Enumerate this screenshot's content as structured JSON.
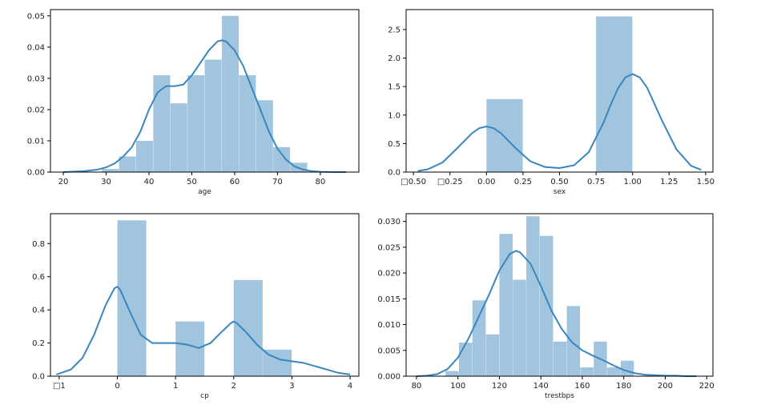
{
  "chart_data": [
    {
      "type": "histogram+kde",
      "xlabel": "age",
      "xlim": [
        17,
        89
      ],
      "ylim": [
        0,
        0.052
      ],
      "xticks": [
        20,
        30,
        40,
        50,
        60,
        70,
        80
      ],
      "xtick_labels": [
        "20",
        "30",
        "40",
        "50",
        "60",
        "70",
        "80"
      ],
      "yticks": [
        0,
        0.01,
        0.02,
        0.03,
        0.04,
        0.05
      ],
      "ytick_labels": [
        "0.00",
        "0.01",
        "0.02",
        "0.03",
        "0.04",
        "0.05"
      ],
      "bins": [
        29,
        33,
        37,
        41,
        45,
        49,
        53,
        57,
        61,
        65,
        69,
        73,
        77
      ],
      "values": [
        0.001,
        0.005,
        0.01,
        0.031,
        0.022,
        0.031,
        0.036,
        0.05,
        0.031,
        0.023,
        0.008,
        0.003
      ],
      "kde": {
        "x": [
          20,
          25,
          28,
          30,
          32,
          34,
          36,
          38,
          40,
          42,
          44,
          46,
          48,
          50,
          52,
          54,
          56,
          57,
          58,
          60,
          62,
          64,
          66,
          68,
          70,
          72,
          74,
          76,
          78,
          80,
          83,
          86
        ],
        "y": [
          0.0,
          0.0003,
          0.0008,
          0.0015,
          0.0028,
          0.005,
          0.008,
          0.013,
          0.02,
          0.0255,
          0.0275,
          0.0275,
          0.028,
          0.031,
          0.035,
          0.039,
          0.0418,
          0.0422,
          0.0418,
          0.039,
          0.034,
          0.027,
          0.02,
          0.013,
          0.0075,
          0.004,
          0.0018,
          0.0008,
          0.0003,
          0.0001,
          0.0,
          0.0
        ]
      }
    },
    {
      "type": "histogram+kde",
      "xlabel": "sex",
      "xlim": [
        -0.55,
        1.55
      ],
      "ylim": [
        0,
        2.85
      ],
      "xticks": [
        -0.5,
        -0.25,
        0.0,
        0.25,
        0.5,
        0.75,
        1.0,
        1.25,
        1.5
      ],
      "xtick_labels": [
        "□0.50",
        "□0.25",
        "0.00",
        "0.25",
        "0.50",
        "0.75",
        "1.00",
        "1.25",
        "1.50"
      ],
      "yticks": [
        0,
        0.5,
        1.0,
        1.5,
        2.0,
        2.5
      ],
      "ytick_labels": [
        "0.0",
        "0.5",
        "1.0",
        "1.5",
        "2.0",
        "2.5"
      ],
      "bins": [
        0.0,
        0.25,
        0.5,
        0.75,
        1.0
      ],
      "values": [
        1.28,
        0.0,
        0.0,
        2.73
      ],
      "kde": {
        "x": [
          -0.47,
          -0.4,
          -0.3,
          -0.2,
          -0.1,
          -0.05,
          0.0,
          0.05,
          0.1,
          0.2,
          0.3,
          0.4,
          0.5,
          0.6,
          0.7,
          0.8,
          0.85,
          0.9,
          0.95,
          1.0,
          1.05,
          1.1,
          1.2,
          1.3,
          1.4,
          1.47
        ],
        "y": [
          0.02,
          0.05,
          0.17,
          0.42,
          0.68,
          0.77,
          0.8,
          0.77,
          0.68,
          0.42,
          0.19,
          0.09,
          0.07,
          0.12,
          0.35,
          0.86,
          1.18,
          1.47,
          1.66,
          1.72,
          1.66,
          1.48,
          0.91,
          0.4,
          0.11,
          0.04
        ]
      }
    },
    {
      "type": "histogram+kde",
      "xlabel": "cp",
      "xlim": [
        -1.15,
        4.15
      ],
      "ylim": [
        0,
        0.98
      ],
      "xticks": [
        -1,
        0,
        1,
        2,
        3,
        4
      ],
      "xtick_labels": [
        "□1",
        "0",
        "1",
        "2",
        "3",
        "4"
      ],
      "yticks": [
        0,
        0.2,
        0.4,
        0.6,
        0.8
      ],
      "ytick_labels": [
        "0.0",
        "0.2",
        "0.4",
        "0.6",
        "0.8"
      ],
      "bins": [
        0.0,
        0.5,
        1.0,
        1.5,
        2.0,
        2.5,
        3.0
      ],
      "values": [
        0.94,
        0.0,
        0.33,
        0.0,
        0.58,
        0.16
      ],
      "kde": {
        "x": [
          -1.05,
          -0.8,
          -0.6,
          -0.4,
          -0.2,
          -0.05,
          0.0,
          0.05,
          0.2,
          0.4,
          0.6,
          0.8,
          1.0,
          1.2,
          1.4,
          1.6,
          1.8,
          1.95,
          2.0,
          2.05,
          2.2,
          2.4,
          2.6,
          2.8,
          3.0,
          3.2,
          3.4,
          3.6,
          3.8,
          4.0
        ],
        "y": [
          0.01,
          0.04,
          0.11,
          0.25,
          0.43,
          0.53,
          0.54,
          0.52,
          0.4,
          0.25,
          0.2,
          0.2,
          0.2,
          0.19,
          0.17,
          0.2,
          0.27,
          0.32,
          0.33,
          0.32,
          0.27,
          0.19,
          0.13,
          0.1,
          0.09,
          0.08,
          0.06,
          0.04,
          0.02,
          0.01
        ]
      }
    },
    {
      "type": "histogram+kde",
      "xlabel": "trestbps",
      "xlim": [
        75,
        223
      ],
      "ylim": [
        0,
        0.0315
      ],
      "xticks": [
        80,
        100,
        120,
        140,
        160,
        180,
        200,
        220
      ],
      "xtick_labels": [
        "80",
        "100",
        "120",
        "140",
        "160",
        "180",
        "200",
        "220"
      ],
      "yticks": [
        0,
        0.005,
        0.01,
        0.015,
        0.02,
        0.025,
        0.03
      ],
      "ytick_labels": [
        "0.000",
        "0.005",
        "0.010",
        "0.015",
        "0.020",
        "0.025",
        "0.030"
      ],
      "bins": [
        94,
        100.5,
        107,
        113.5,
        120,
        126.5,
        133,
        139.5,
        146,
        152.5,
        159,
        165.5,
        172,
        178.5,
        185,
        191.5,
        198,
        204.5
      ],
      "values": [
        0.001,
        0.0065,
        0.0147,
        0.0081,
        0.0276,
        0.0187,
        0.031,
        0.0272,
        0.0067,
        0.0136,
        0.0017,
        0.0067,
        0.0017,
        0.003,
        0.0,
        0.0,
        0.0002
      ],
      "kde": {
        "x": [
          80,
          85,
          90,
          95,
          100,
          105,
          110,
          115,
          120,
          125,
          128,
          130,
          135,
          140,
          145,
          150,
          155,
          160,
          165,
          170,
          175,
          180,
          185,
          190,
          195,
          200,
          205,
          210,
          215
        ],
        "y": [
          0.0,
          0.0001,
          0.0004,
          0.0014,
          0.0036,
          0.0072,
          0.0115,
          0.0158,
          0.0205,
          0.0237,
          0.0243,
          0.024,
          0.0218,
          0.0175,
          0.0128,
          0.0092,
          0.0066,
          0.005,
          0.004,
          0.0031,
          0.0021,
          0.0012,
          0.0006,
          0.0003,
          0.0002,
          0.0001,
          0.0001,
          0.0,
          0.0
        ]
      }
    }
  ]
}
